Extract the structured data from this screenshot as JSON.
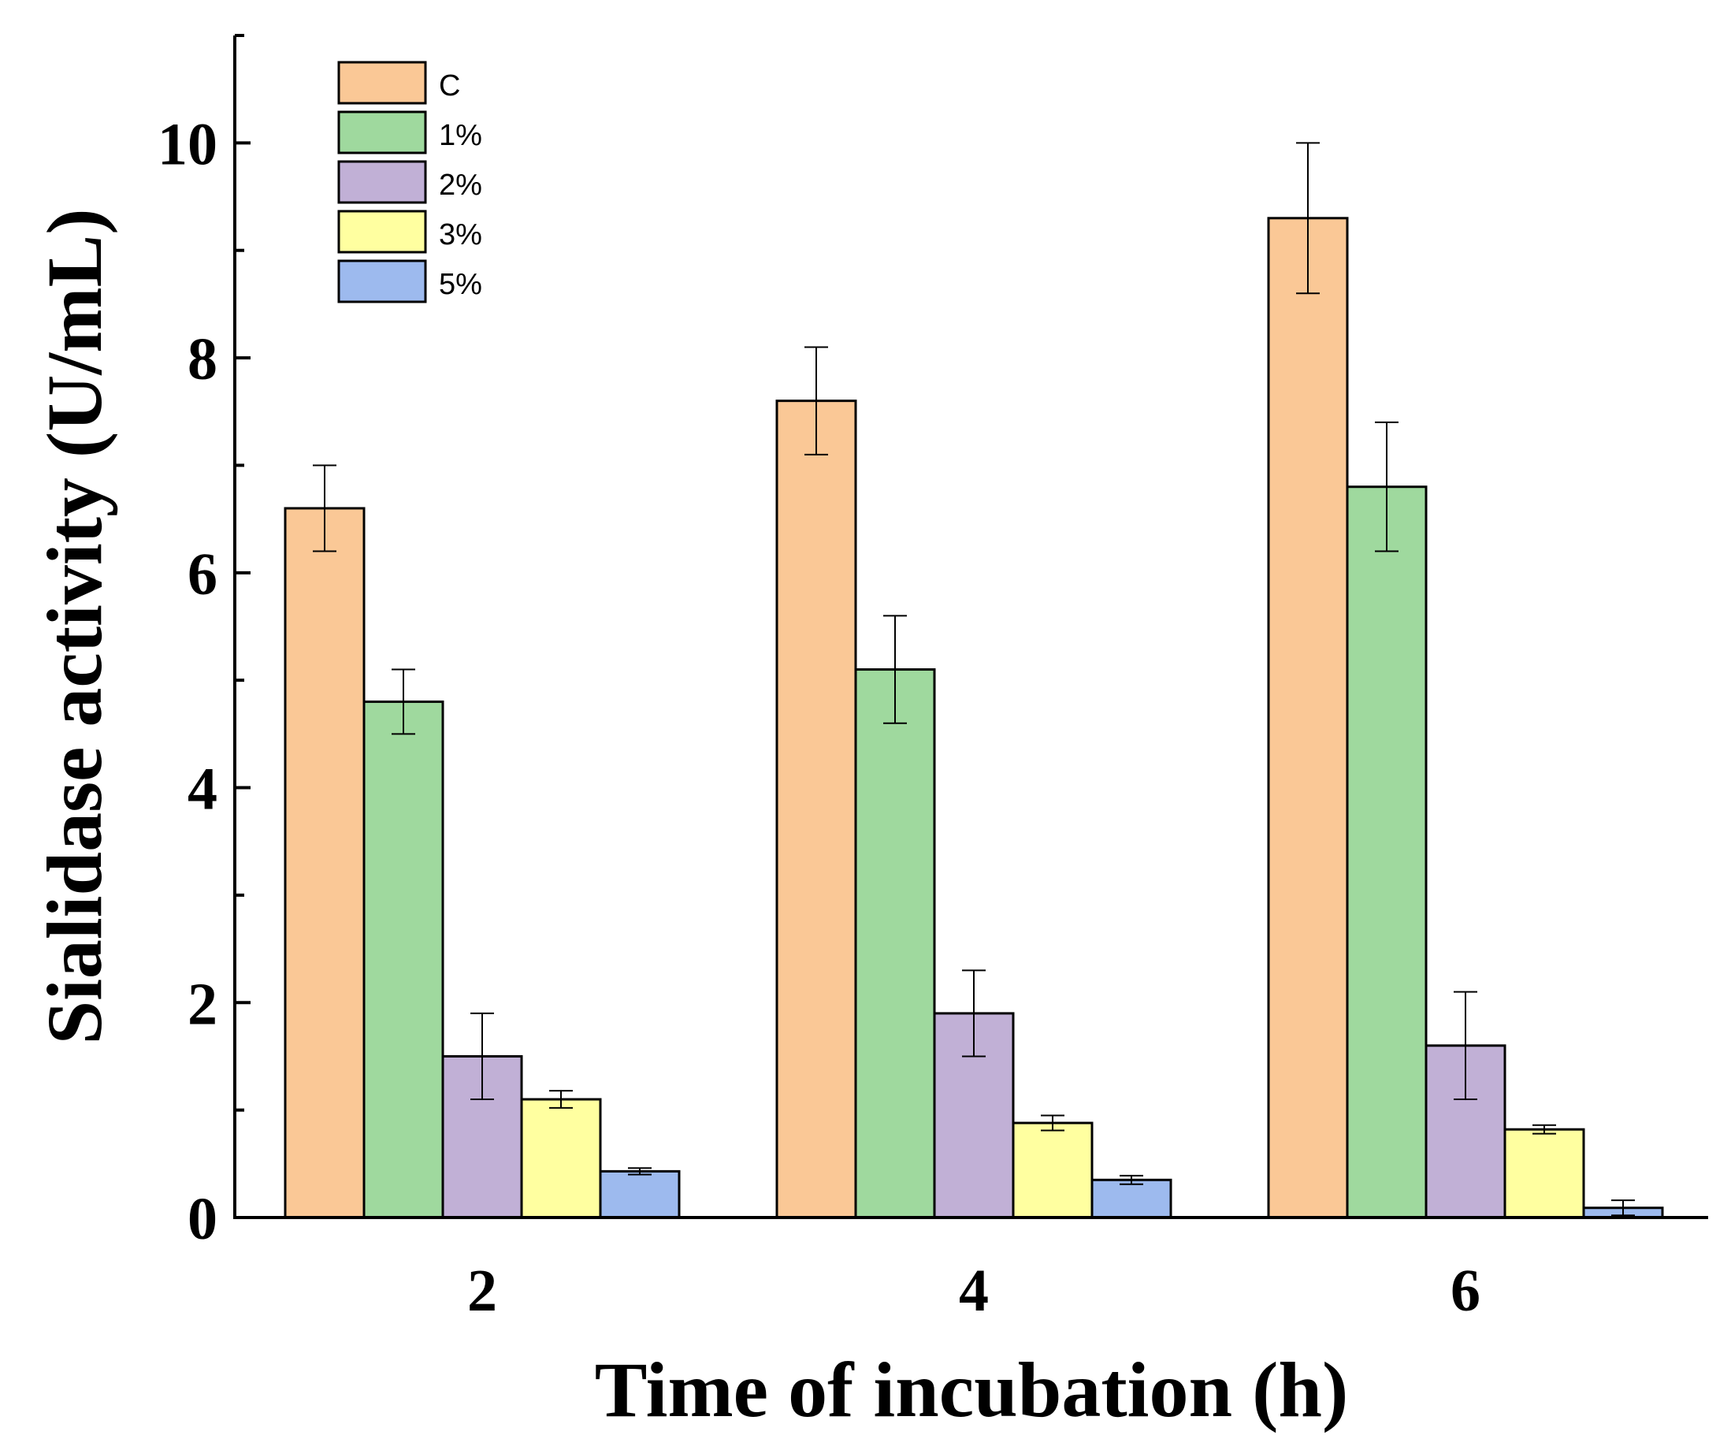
{
  "chart_data": {
    "type": "bar",
    "title": "",
    "xlabel": "Time of incubation (h)",
    "ylabel": "Sialidase activity (U/mL)",
    "categories": [
      "2",
      "4",
      "6"
    ],
    "ylim": [
      0,
      11
    ],
    "yticks": [
      "0",
      "2",
      "4",
      "6",
      "8",
      "10"
    ],
    "legend_position": "top-left",
    "series": [
      {
        "name": "C",
        "color": "#FAC896",
        "values": [
          6.6,
          7.6,
          9.3
        ],
        "errors": [
          0.4,
          0.5,
          0.7
        ]
      },
      {
        "name": "1%",
        "color": "#9FD99E",
        "values": [
          4.8,
          5.1,
          6.8
        ],
        "errors": [
          0.3,
          0.5,
          0.6
        ]
      },
      {
        "name": "2%",
        "color": "#C1B0D6",
        "values": [
          1.5,
          1.9,
          1.6
        ],
        "errors": [
          0.4,
          0.4,
          0.5
        ]
      },
      {
        "name": "3%",
        "color": "#FFFFA0",
        "values": [
          1.1,
          0.88,
          0.82
        ],
        "errors": [
          0.08,
          0.07,
          0.04
        ]
      },
      {
        "name": "5%",
        "color": "#9DBAEE",
        "values": [
          0.43,
          0.35,
          0.09
        ],
        "errors": [
          0.03,
          0.04,
          0.07
        ]
      }
    ]
  }
}
